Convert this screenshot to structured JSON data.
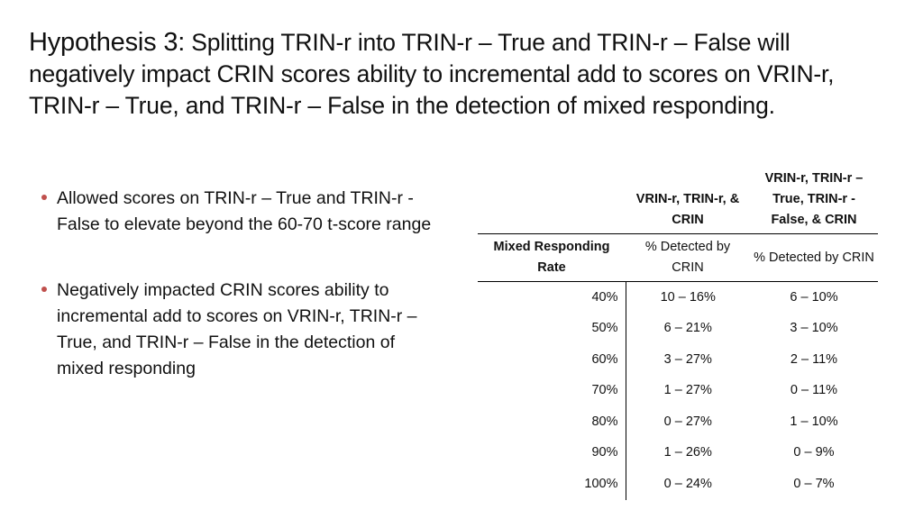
{
  "title": {
    "lead": "Hypothesis 3:",
    "rest": " Splitting TRIN-r into TRIN-r – True and TRIN-r – False will negatively impact CRIN scores ability to incremental add to scores on VRIN-r, TRIN-r – True, and TRIN-r – False in the detection of mixed responding."
  },
  "bullets": [
    "Allowed scores on TRIN-r – True and TRIN-r - False to elevate beyond the 60-70 t-score range",
    "Negatively impacted CRIN scores ability to incremental add to scores on VRIN-r, TRIN-r – True, and TRIN-r – False in the detection of mixed responding"
  ],
  "bullet_color": "#c0504d",
  "table": {
    "col_headers": [
      "",
      "VRIN-r, TRIN-r, & CRIN",
      "VRIN-r, TRIN-r – True, TRIN-r - False, & CRIN"
    ],
    "sub_headers": [
      "Mixed Responding Rate",
      "% Detected by CRIN",
      "% Detected by CRIN"
    ],
    "rows": [
      {
        "rate": "40%",
        "a": "10 – 16%",
        "b": "6 – 10%"
      },
      {
        "rate": "50%",
        "a": "6 – 21%",
        "b": "3 – 10%"
      },
      {
        "rate": "60%",
        "a": "3 – 27%",
        "b": "2 – 11%"
      },
      {
        "rate": "70%",
        "a": "1 – 27%",
        "b": "0 – 11%"
      },
      {
        "rate": "80%",
        "a": "0 – 27%",
        "b": "1 – 10%"
      },
      {
        "rate": "90%",
        "a": "1 – 26%",
        "b": "0 – 9%"
      },
      {
        "rate": "100%",
        "a": "0 – 24%",
        "b": "0 – 7%"
      }
    ]
  }
}
